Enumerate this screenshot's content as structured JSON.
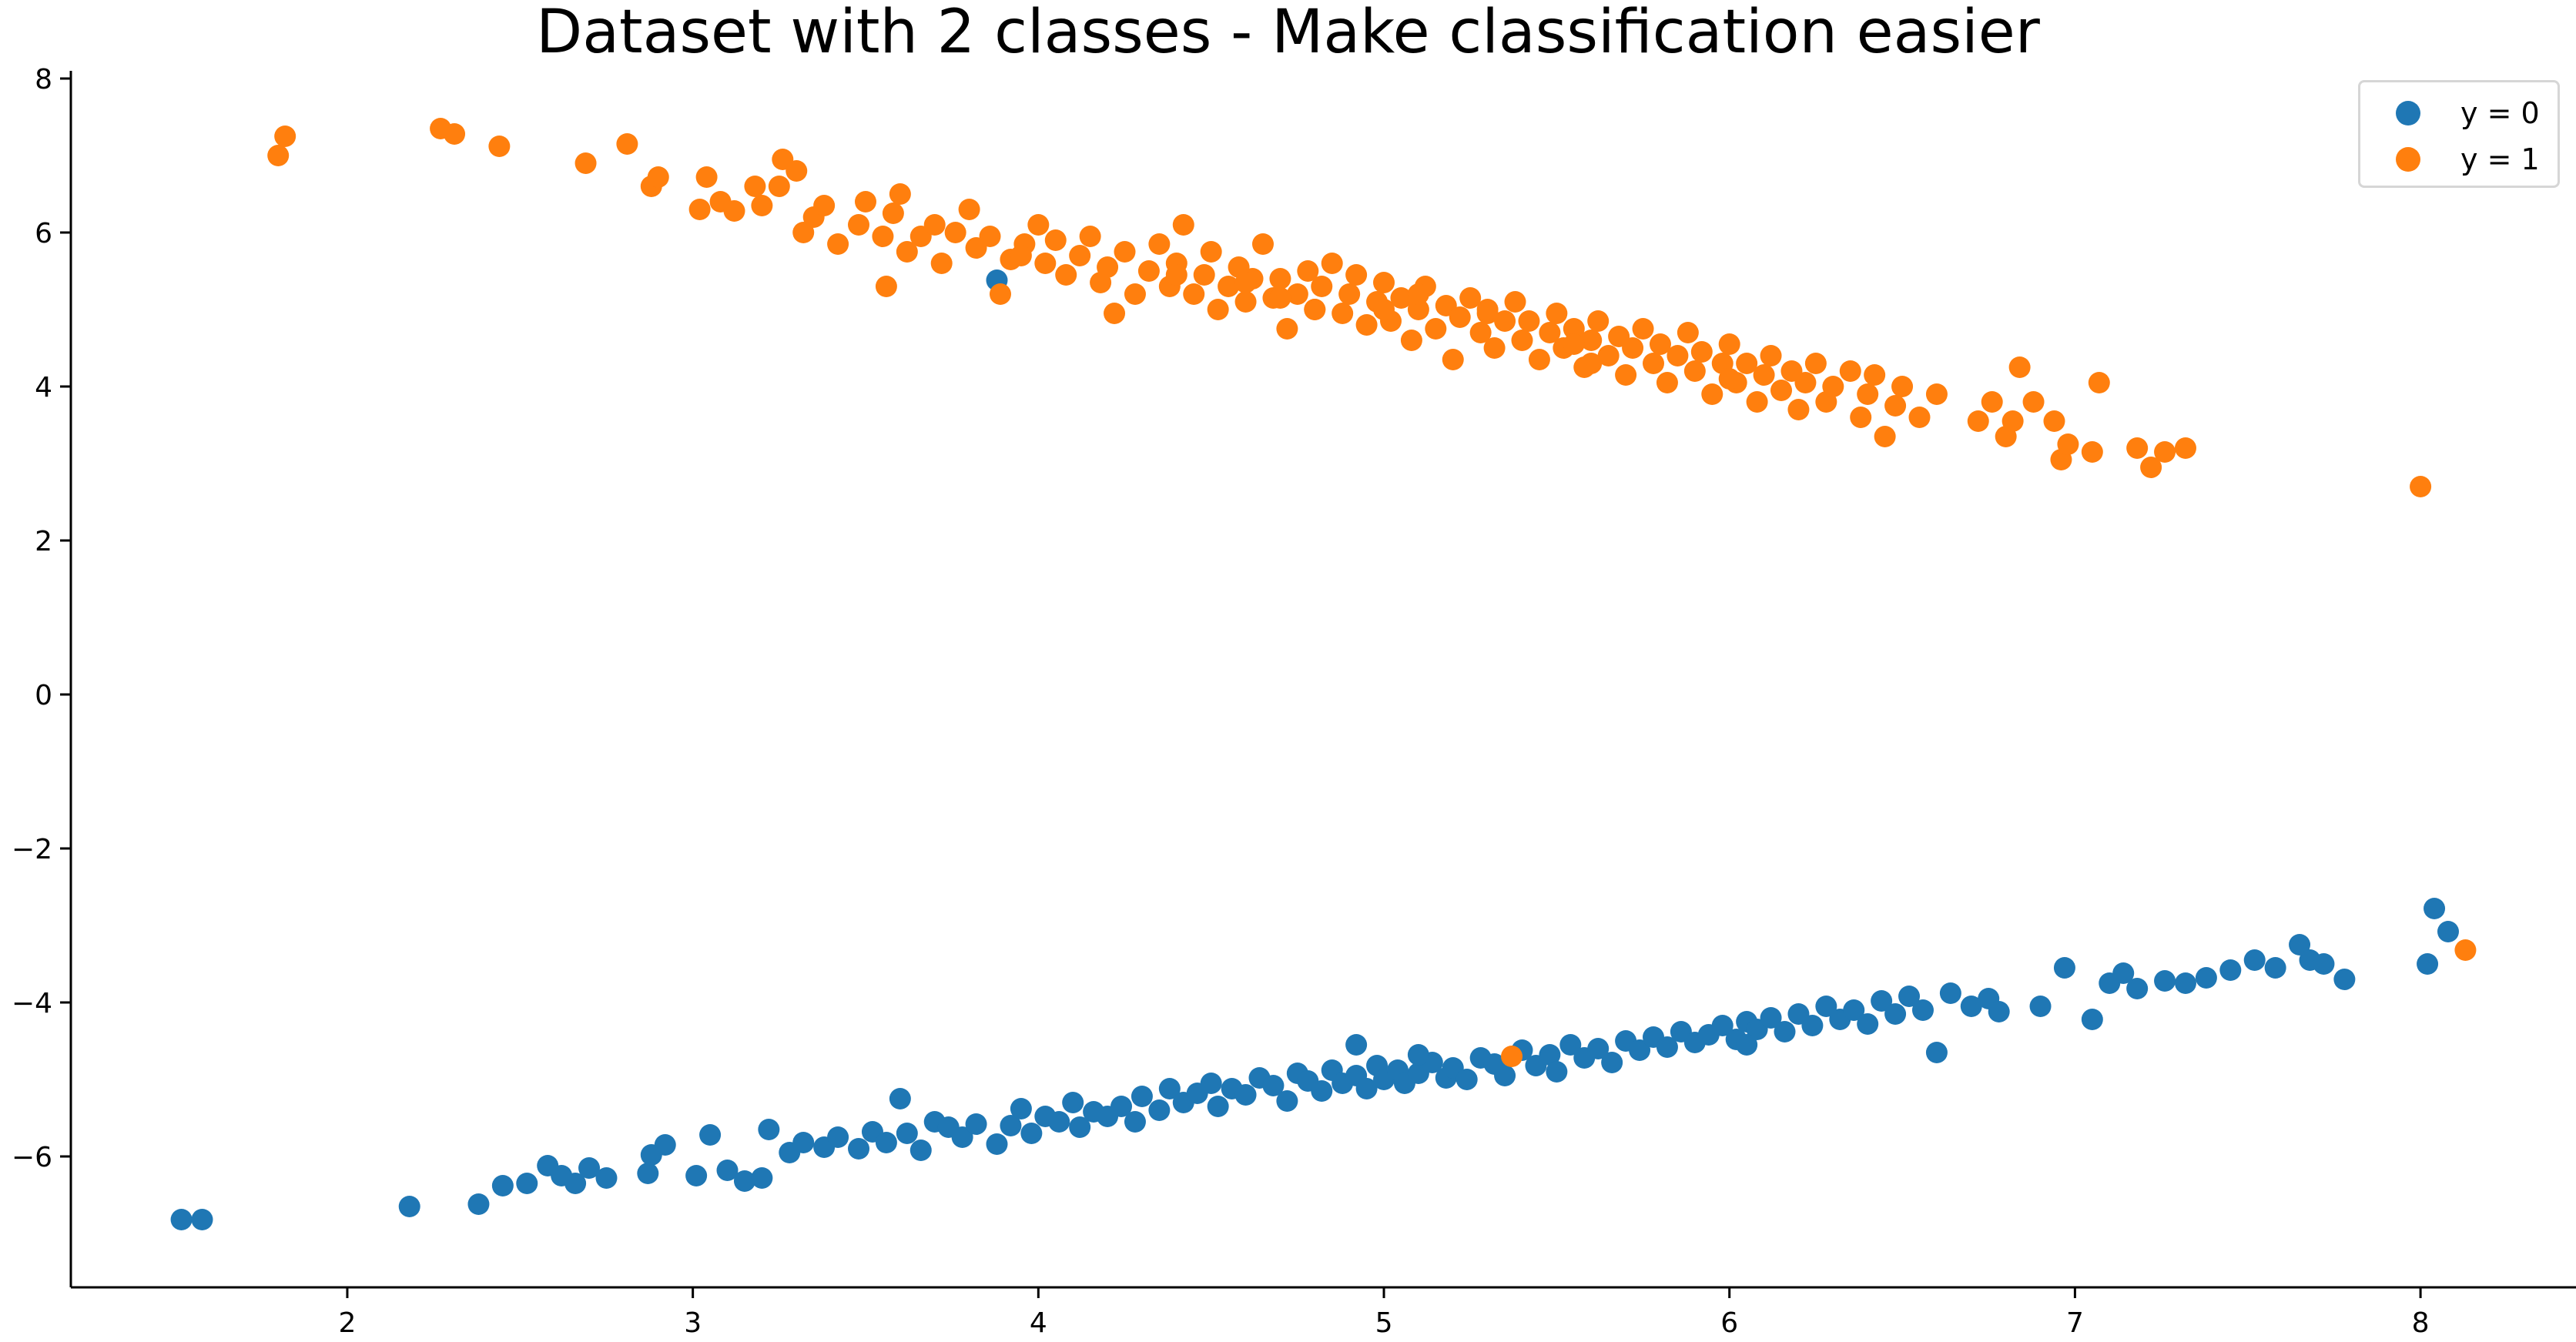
{
  "chart_data": {
    "type": "scatter",
    "title": "Dataset with 2 classes - Make classification easier",
    "xlabel": "",
    "ylabel": "",
    "xlim": [
      1.2,
      8.45
    ],
    "ylim": [
      -7.7,
      8.1
    ],
    "xticks": [
      2,
      3,
      4,
      5,
      6,
      7,
      8
    ],
    "xtick_labels": [
      "2",
      "3",
      "4",
      "5",
      "6",
      "7",
      "8"
    ],
    "yticks": [
      8,
      6,
      4,
      2,
      0,
      -2,
      -4,
      -6
    ],
    "ytick_labels": [
      "8",
      "6",
      "4",
      "2",
      "0",
      "−2",
      "−4",
      "−6"
    ],
    "grid": false,
    "legend_position": "top-right",
    "series": [
      {
        "name": "y = 0",
        "color": "#1f77b4",
        "points": [
          [
            1.52,
            -6.82
          ],
          [
            1.58,
            -6.82
          ],
          [
            2.18,
            -6.65
          ],
          [
            2.38,
            -6.62
          ],
          [
            2.45,
            -6.38
          ],
          [
            2.52,
            -6.35
          ],
          [
            2.58,
            -6.12
          ],
          [
            2.62,
            -6.25
          ],
          [
            2.66,
            -6.35
          ],
          [
            2.7,
            -6.15
          ],
          [
            2.75,
            -6.28
          ],
          [
            2.87,
            -6.22
          ],
          [
            2.88,
            -5.98
          ],
          [
            2.92,
            -5.85
          ],
          [
            3.01,
            -6.25
          ],
          [
            3.05,
            -5.72
          ],
          [
            3.1,
            -6.18
          ],
          [
            3.15,
            -6.32
          ],
          [
            3.2,
            -6.28
          ],
          [
            3.22,
            -5.65
          ],
          [
            3.28,
            -5.95
          ],
          [
            3.32,
            -5.82
          ],
          [
            3.38,
            -5.88
          ],
          [
            3.42,
            -5.75
          ],
          [
            3.48,
            -5.9
          ],
          [
            3.52,
            -5.68
          ],
          [
            3.56,
            -5.82
          ],
          [
            3.6,
            -5.25
          ],
          [
            3.62,
            -5.7
          ],
          [
            3.66,
            -5.92
          ],
          [
            3.7,
            -5.55
          ],
          [
            3.74,
            -5.62
          ],
          [
            3.78,
            -5.75
          ],
          [
            3.82,
            -5.58
          ],
          [
            3.88,
            -5.84
          ],
          [
            3.92,
            -5.6
          ],
          [
            3.95,
            -5.38
          ],
          [
            3.98,
            -5.7
          ],
          [
            4.02,
            -5.48
          ],
          [
            4.06,
            -5.55
          ],
          [
            4.1,
            -5.3
          ],
          [
            4.12,
            -5.62
          ],
          [
            4.16,
            -5.42
          ],
          [
            4.2,
            -5.48
          ],
          [
            4.24,
            -5.35
          ],
          [
            4.28,
            -5.55
          ],
          [
            4.3,
            -5.22
          ],
          [
            4.35,
            -5.4
          ],
          [
            4.38,
            -5.12
          ],
          [
            4.42,
            -5.3
          ],
          [
            4.46,
            -5.18
          ],
          [
            4.5,
            -5.05
          ],
          [
            4.52,
            -5.35
          ],
          [
            4.56,
            -5.12
          ],
          [
            4.6,
            -5.2
          ],
          [
            4.64,
            -4.98
          ],
          [
            4.68,
            -5.08
          ],
          [
            4.72,
            -5.28
          ],
          [
            4.75,
            -4.92
          ],
          [
            4.78,
            -5.02
          ],
          [
            4.82,
            -5.15
          ],
          [
            4.85,
            -4.88
          ],
          [
            4.88,
            -5.05
          ],
          [
            4.92,
            -4.95
          ],
          [
            4.95,
            -5.12
          ],
          [
            4.98,
            -4.82
          ],
          [
            5.0,
            -5.0
          ],
          [
            5.04,
            -4.88
          ],
          [
            5.06,
            -5.05
          ],
          [
            5.1,
            -4.92
          ],
          [
            5.14,
            -4.78
          ],
          [
            5.18,
            -4.98
          ],
          [
            5.2,
            -4.85
          ],
          [
            5.24,
            -5.0
          ],
          [
            5.28,
            -4.72
          ],
          [
            5.32,
            -4.8
          ],
          [
            5.35,
            -4.95
          ],
          [
            5.4,
            -4.62
          ],
          [
            5.44,
            -4.82
          ],
          [
            5.48,
            -4.68
          ],
          [
            5.5,
            -4.9
          ],
          [
            5.54,
            -4.55
          ],
          [
            5.58,
            -4.72
          ],
          [
            5.62,
            -4.6
          ],
          [
            5.66,
            -4.78
          ],
          [
            5.7,
            -4.5
          ],
          [
            5.74,
            -4.62
          ],
          [
            5.78,
            -4.45
          ],
          [
            5.82,
            -4.58
          ],
          [
            5.86,
            -4.38
          ],
          [
            5.9,
            -4.52
          ],
          [
            5.94,
            -4.42
          ],
          [
            5.98,
            -4.3
          ],
          [
            6.02,
            -4.48
          ],
          [
            6.05,
            -4.25
          ],
          [
            6.08,
            -4.35
          ],
          [
            6.12,
            -4.2
          ],
          [
            6.16,
            -4.38
          ],
          [
            6.2,
            -4.15
          ],
          [
            6.24,
            -4.3
          ],
          [
            6.28,
            -4.05
          ],
          [
            6.32,
            -4.22
          ],
          [
            6.36,
            -4.1
          ],
          [
            6.4,
            -4.28
          ],
          [
            6.44,
            -3.98
          ],
          [
            6.48,
            -4.15
          ],
          [
            6.52,
            -3.92
          ],
          [
            6.56,
            -4.1
          ],
          [
            6.6,
            -4.65
          ],
          [
            6.64,
            -3.88
          ],
          [
            6.7,
            -4.05
          ],
          [
            6.75,
            -3.95
          ],
          [
            6.78,
            -4.12
          ],
          [
            6.9,
            -4.05
          ],
          [
            6.97,
            -3.55
          ],
          [
            7.05,
            -4.22
          ],
          [
            7.1,
            -3.75
          ],
          [
            7.14,
            -3.62
          ],
          [
            7.18,
            -3.82
          ],
          [
            7.26,
            -3.72
          ],
          [
            7.32,
            -3.75
          ],
          [
            7.38,
            -3.68
          ],
          [
            7.45,
            -3.58
          ],
          [
            7.52,
            -3.45
          ],
          [
            7.58,
            -3.55
          ],
          [
            7.65,
            -3.25
          ],
          [
            7.68,
            -3.45
          ],
          [
            7.72,
            -3.5
          ],
          [
            7.78,
            -3.7
          ],
          [
            8.04,
            -2.78
          ],
          [
            8.08,
            -3.08
          ],
          [
            8.02,
            -3.5
          ],
          [
            3.88,
            5.38
          ],
          [
            4.92,
            -4.55
          ],
          [
            5.1,
            -4.68
          ],
          [
            6.05,
            -4.55
          ]
        ]
      },
      {
        "name": "y = 1",
        "color": "#ff7f0e",
        "points": [
          [
            1.8,
            7.0
          ],
          [
            1.82,
            7.25
          ],
          [
            2.27,
            7.35
          ],
          [
            2.31,
            7.28
          ],
          [
            2.44,
            7.12
          ],
          [
            2.69,
            6.9
          ],
          [
            2.81,
            7.15
          ],
          [
            2.88,
            6.6
          ],
          [
            2.9,
            6.72
          ],
          [
            3.02,
            6.3
          ],
          [
            3.04,
            6.72
          ],
          [
            3.08,
            6.4
          ],
          [
            3.12,
            6.28
          ],
          [
            3.18,
            6.6
          ],
          [
            3.2,
            6.35
          ],
          [
            3.25,
            6.6
          ],
          [
            3.26,
            6.95
          ],
          [
            3.3,
            6.8
          ],
          [
            3.32,
            6.0
          ],
          [
            3.35,
            6.2
          ],
          [
            3.38,
            6.35
          ],
          [
            3.42,
            5.85
          ],
          [
            3.48,
            6.1
          ],
          [
            3.5,
            6.4
          ],
          [
            3.55,
            5.95
          ],
          [
            3.56,
            5.3
          ],
          [
            3.58,
            6.25
          ],
          [
            3.6,
            6.5
          ],
          [
            3.62,
            5.75
          ],
          [
            3.66,
            5.95
          ],
          [
            3.7,
            6.1
          ],
          [
            3.72,
            5.6
          ],
          [
            3.76,
            6.0
          ],
          [
            3.8,
            6.3
          ],
          [
            3.82,
            5.8
          ],
          [
            3.86,
            5.95
          ],
          [
            3.89,
            5.2
          ],
          [
            3.92,
            5.65
          ],
          [
            3.96,
            5.85
          ],
          [
            4.0,
            6.1
          ],
          [
            4.02,
            5.6
          ],
          [
            4.05,
            5.9
          ],
          [
            4.08,
            5.45
          ],
          [
            4.12,
            5.7
          ],
          [
            4.15,
            5.95
          ],
          [
            4.18,
            5.35
          ],
          [
            4.2,
            5.55
          ],
          [
            4.22,
            4.95
          ],
          [
            4.25,
            5.75
          ],
          [
            4.28,
            5.2
          ],
          [
            4.32,
            5.5
          ],
          [
            4.35,
            5.85
          ],
          [
            4.38,
            5.3
          ],
          [
            4.4,
            5.6
          ],
          [
            4.42,
            6.1
          ],
          [
            4.45,
            5.2
          ],
          [
            4.48,
            5.45
          ],
          [
            4.5,
            5.75
          ],
          [
            4.52,
            5.0
          ],
          [
            4.55,
            5.3
          ],
          [
            4.58,
            5.55
          ],
          [
            4.6,
            5.1
          ],
          [
            4.62,
            5.4
          ],
          [
            4.65,
            5.85
          ],
          [
            4.68,
            5.15
          ],
          [
            4.7,
            5.4
          ],
          [
            4.72,
            4.75
          ],
          [
            4.75,
            5.2
          ],
          [
            4.78,
            5.5
          ],
          [
            4.8,
            5.0
          ],
          [
            4.82,
            5.3
          ],
          [
            4.85,
            5.6
          ],
          [
            4.88,
            4.95
          ],
          [
            4.9,
            5.2
          ],
          [
            4.92,
            5.45
          ],
          [
            4.95,
            4.8
          ],
          [
            4.98,
            5.1
          ],
          [
            5.0,
            5.35
          ],
          [
            5.02,
            4.85
          ],
          [
            5.05,
            5.15
          ],
          [
            5.08,
            4.6
          ],
          [
            5.1,
            5.0
          ],
          [
            5.12,
            5.3
          ],
          [
            5.15,
            4.75
          ],
          [
            5.18,
            5.05
          ],
          [
            5.2,
            4.35
          ],
          [
            5.22,
            4.9
          ],
          [
            5.25,
            5.15
          ],
          [
            5.28,
            4.7
          ],
          [
            5.3,
            4.95
          ],
          [
            5.32,
            4.5
          ],
          [
            5.35,
            4.85
          ],
          [
            5.38,
            5.1
          ],
          [
            5.4,
            4.6
          ],
          [
            5.42,
            4.85
          ],
          [
            5.45,
            4.35
          ],
          [
            5.48,
            4.7
          ],
          [
            5.5,
            4.95
          ],
          [
            5.52,
            4.5
          ],
          [
            5.55,
            4.75
          ],
          [
            5.58,
            4.25
          ],
          [
            5.6,
            4.6
          ],
          [
            5.62,
            4.85
          ],
          [
            5.65,
            4.4
          ],
          [
            5.68,
            4.65
          ],
          [
            5.7,
            4.15
          ],
          [
            5.72,
            4.5
          ],
          [
            5.75,
            4.75
          ],
          [
            5.78,
            4.3
          ],
          [
            5.8,
            4.55
          ],
          [
            5.82,
            4.05
          ],
          [
            5.85,
            4.4
          ],
          [
            5.88,
            4.7
          ],
          [
            5.9,
            4.2
          ],
          [
            5.92,
            4.45
          ],
          [
            5.95,
            3.9
          ],
          [
            5.98,
            4.3
          ],
          [
            6.0,
            4.55
          ],
          [
            6.02,
            4.05
          ],
          [
            6.05,
            4.3
          ],
          [
            6.08,
            3.8
          ],
          [
            6.1,
            4.15
          ],
          [
            6.12,
            4.4
          ],
          [
            6.15,
            3.95
          ],
          [
            6.18,
            4.2
          ],
          [
            6.2,
            3.7
          ],
          [
            6.22,
            4.05
          ],
          [
            6.25,
            4.3
          ],
          [
            6.28,
            3.8
          ],
          [
            6.3,
            4.0
          ],
          [
            6.35,
            4.2
          ],
          [
            6.38,
            3.6
          ],
          [
            6.4,
            3.9
          ],
          [
            6.42,
            4.15
          ],
          [
            6.45,
            3.35
          ],
          [
            6.48,
            3.75
          ],
          [
            6.5,
            4.0
          ],
          [
            6.55,
            3.6
          ],
          [
            6.6,
            3.9
          ],
          [
            6.72,
            3.55
          ],
          [
            6.76,
            3.8
          ],
          [
            6.8,
            3.35
          ],
          [
            6.82,
            3.55
          ],
          [
            6.84,
            4.25
          ],
          [
            6.88,
            3.8
          ],
          [
            6.94,
            3.55
          ],
          [
            6.96,
            3.05
          ],
          [
            6.98,
            3.25
          ],
          [
            7.05,
            3.15
          ],
          [
            7.07,
            4.05
          ],
          [
            7.18,
            3.2
          ],
          [
            7.22,
            2.95
          ],
          [
            7.26,
            3.15
          ],
          [
            7.32,
            3.2
          ],
          [
            8.0,
            2.7
          ],
          [
            5.37,
            -4.7
          ],
          [
            8.13,
            -3.32
          ],
          [
            4.8,
            5.0
          ],
          [
            5.0,
            5.0
          ],
          [
            4.7,
            5.15
          ],
          [
            5.1,
            5.2
          ],
          [
            5.3,
            5.0
          ],
          [
            4.6,
            5.35
          ],
          [
            4.4,
            5.45
          ],
          [
            5.55,
            4.55
          ],
          [
            5.6,
            4.3
          ],
          [
            6.0,
            4.1
          ],
          [
            3.95,
            5.7
          ]
        ]
      }
    ]
  }
}
